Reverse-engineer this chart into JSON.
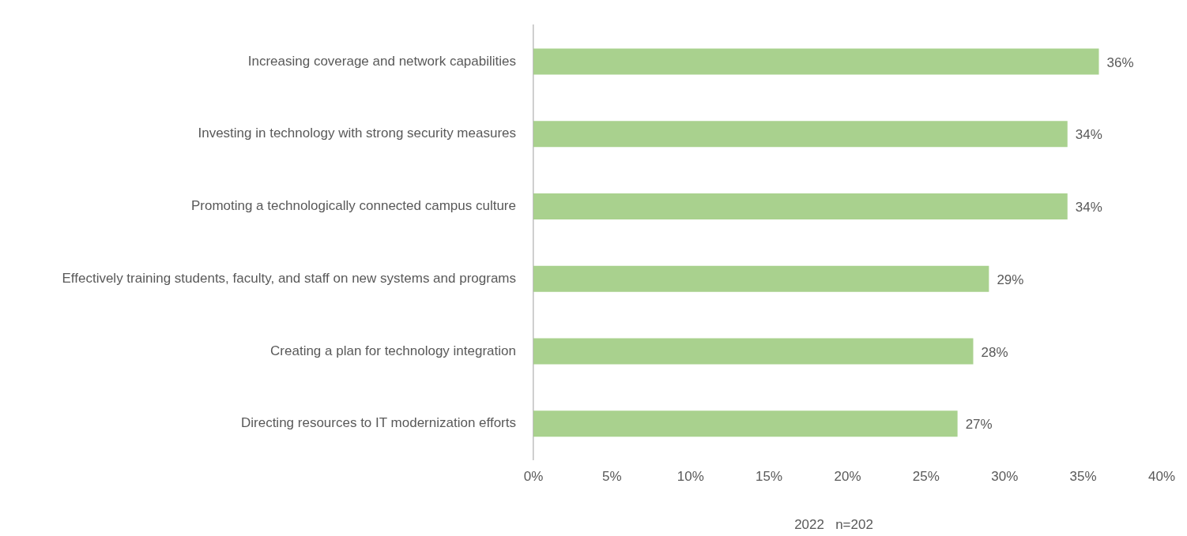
{
  "chart_data": {
    "type": "bar",
    "orientation": "horizontal",
    "categories": [
      "Increasing coverage and network capabilities",
      "Investing in technology with strong security measures",
      "Promoting a technologically connected campus culture",
      "Effectively training students, faculty, and staff on new systems and programs",
      "Creating a plan for technology integration",
      "Directing resources to IT modernization efforts"
    ],
    "values": [
      36,
      34,
      34,
      29,
      28,
      27
    ],
    "value_labels": [
      "36%",
      "34%",
      "34%",
      "29%",
      "28%",
      "27%"
    ],
    "color": "#a9d18e",
    "xlim": [
      0,
      40
    ],
    "xticks": [
      {
        "value": 0,
        "label": "0%"
      },
      {
        "value": 5,
        "label": "5%"
      },
      {
        "value": 10,
        "label": "10%"
      },
      {
        "value": 15,
        "label": "15%"
      },
      {
        "value": 20,
        "label": "20%"
      },
      {
        "value": 25,
        "label": "25%"
      },
      {
        "value": 30,
        "label": "30%"
      },
      {
        "value": 35,
        "label": "35%"
      },
      {
        "value": 40,
        "label": "40%"
      }
    ],
    "annotations": [
      "2022   n=202"
    ]
  }
}
